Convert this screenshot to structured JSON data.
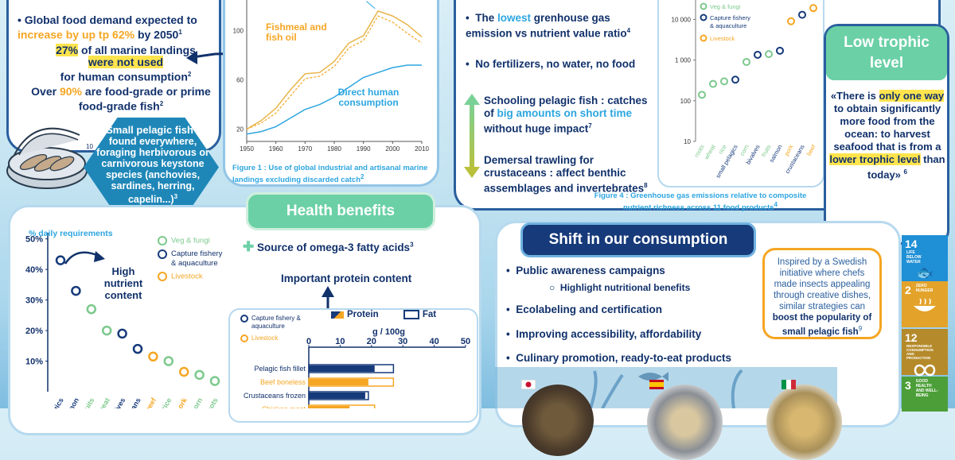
{
  "intro": {
    "b1_pre": "Global food demand expected to",
    "b1_hl": "increase by up tp 62%",
    "b1_post": "by 2050",
    "b1_sup": "1",
    "b2_hl": "27%",
    "b2_mid": "of all marine landings",
    "b2_yel": "were not used",
    "b2_post": "for human consumption",
    "b2_sup": "2",
    "b3_pre": "Over",
    "b3_hl": "90%",
    "b3_post": "are food-grade or prime food-grade fish",
    "b3_sup": "2",
    "ten_marker": "10",
    "hex_title": "Small pelagic fish :",
    "hex_body": "found everywhere, foraging herbivorous or carnivorous keystone species (anchovies, sardines, herring, capelin...)",
    "hex_sup": "3"
  },
  "fig1": {
    "series_a_label": "Fishmeal and fish oil",
    "series_b_label": "Direct human consumption",
    "caption": "Figure 1 : Use of global industrial and artisanal marine landings excluding discarded catch",
    "caption_sup": "2"
  },
  "env": {
    "b1_pre": "The",
    "b1_hl": "lowest",
    "b1_post": "grenhouse gas emission vs nutrient value ratio",
    "b1_sup": "4",
    "b2": "No fertilizers, no water, no food",
    "b3_pre": "Schooling pelagic fish : catches of",
    "b3_hl": "big amounts on short time",
    "b3_post": "without huge impact",
    "b3_sup": "7",
    "b4": "Demersal trawling for crustaceans : affect benthic assemblages and invertebrates",
    "b4_sup": "8"
  },
  "fig4": {
    "legend": [
      "Veg & fungi",
      "Capture fishery & aquaculture",
      "Livestock"
    ],
    "caption": "Figure 4 : Greenhouse gas emissions relative to composite nutrient richness across 11 food products",
    "caption_sup": "4"
  },
  "trophic": {
    "title": "Low trophic level",
    "q1": "«There is",
    "q_hl": "only one way",
    "q2": "to obtain significantly more food from the ocean: to harvest seafood that is from a",
    "q_hl2": "lower trophic level",
    "q3": "than today»",
    "sup": "6"
  },
  "health": {
    "title": "Health benefits",
    "omega": "Source of omega-3 fatty acids",
    "omega_sup": "3",
    "protein_title": "Important protein content",
    "daily_label": "% daily requirements",
    "legend": [
      "Veg & fungi",
      "Capture fishery & aquaculture",
      "Livestock"
    ],
    "high_nutrient": "High nutrient content",
    "bar_legend": [
      "Capture fishery & aquaculture",
      "Livestock"
    ],
    "protein_label": "Protein",
    "fat_label": "Fat",
    "unit": "g / 100g"
  },
  "shift": {
    "title": "Shift in our consumption",
    "b1": "Public awareness campaigns",
    "b1_sub": "Highlight nutritional benefits",
    "b2": "Ecolabeling and certification",
    "b3": "Improving accessibility, affordability",
    "b4": "Culinary promotion, ready-to-eat products",
    "box_pre": "Inspired by a Swedish initiative where chefs made insects appealing through creative dishes, similar strategies can",
    "box_bold": "boost the popularity of small pelagic fish",
    "box_sup": "9"
  },
  "sdgs": [
    {
      "num": "14",
      "text": "LIFE BELOW WATER",
      "color": "#1f8fd6"
    },
    {
      "num": "2",
      "text": "ZERO HUNGER",
      "color": "#e3a32b"
    },
    {
      "num": "12",
      "text": "RESPONSIBLE CONSUMPTION AND PRODUCTION",
      "color": "#b58a2a"
    },
    {
      "num": "3",
      "text": "GOOD HEALTH AND WELL-BEING",
      "color": "#4c9f38"
    }
  ],
  "colors": {
    "navy": "#11316b",
    "orange": "#f5a623",
    "blue": "#2da6e0",
    "green": "#6bd0a6",
    "teal": "#1f87b8"
  },
  "chart_data": [
    {
      "type": "line",
      "title": "",
      "x": [
        1950,
        1955,
        1960,
        1965,
        1970,
        1975,
        1980,
        1985,
        1990,
        1995,
        2000,
        2005,
        2010
      ],
      "xlim": [
        1950,
        2010
      ],
      "ylim": [
        10,
        125
      ],
      "yticks": [
        20,
        60,
        100
      ],
      "xticks": [
        1950,
        1960,
        1970,
        1980,
        1990,
        2000,
        2010
      ],
      "series": [
        {
          "name": "total",
          "values": [
            20,
            27,
            37,
            52,
            65,
            66,
            75,
            90,
            96,
            116,
            112,
            105,
            95
          ]
        },
        {
          "name": "Fishmeal and fish oil",
          "values": [
            20,
            25,
            33,
            47,
            61,
            63,
            71,
            86,
            92,
            112,
            107,
            98,
            90
          ]
        },
        {
          "name": "Direct human consumption",
          "values": [
            16,
            18,
            22,
            29,
            36,
            40,
            46,
            54,
            62,
            66,
            70,
            72,
            72
          ]
        }
      ]
    },
    {
      "type": "scatter",
      "log_y": true,
      "ylim": [
        10,
        30000
      ],
      "yticks": [
        10,
        100,
        1000,
        10000
      ],
      "ytick_labels": [
        "10",
        "100",
        "1 000",
        "10 000"
      ],
      "categories": [
        "roots",
        "wheat",
        "rice",
        "small pelagics",
        "corn",
        "bivalves",
        "fruits",
        "salmon",
        "pork",
        "crustaceans",
        "beef"
      ],
      "values": [
        140,
        260,
        300,
        330,
        900,
        1350,
        1400,
        1700,
        9000,
        13000,
        19000
      ],
      "groups": [
        "veg",
        "veg",
        "veg",
        "fish",
        "veg",
        "fish",
        "veg",
        "fish",
        "live",
        "fish",
        "live"
      ]
    },
    {
      "type": "scatter",
      "ylabel": "% daily requirements",
      "ylim": [
        0,
        52
      ],
      "yticks": [
        10,
        20,
        30,
        40,
        50
      ],
      "ytick_labels": [
        "10%",
        "20%",
        "30%",
        "40%",
        "50%"
      ],
      "categories": [
        "small pelagics",
        "salmon",
        "fruits",
        "wheat",
        "bivalves",
        "crustaceans",
        "beef",
        "rice",
        "pork",
        "corn",
        "roots"
      ],
      "values": [
        43,
        33,
        27,
        20,
        19,
        14,
        11.5,
        10,
        6.5,
        5.5,
        3.5
      ],
      "groups": [
        "fish",
        "fish",
        "veg",
        "veg",
        "fish",
        "fish",
        "live",
        "veg",
        "live",
        "veg",
        "veg"
      ]
    },
    {
      "type": "bar",
      "xlim": [
        0,
        50
      ],
      "xticks": [
        0,
        10,
        20,
        30,
        40,
        50
      ],
      "categories": [
        "Pelagic fish fillet",
        "Beef boneless",
        "Crustaceans frozen",
        "Chicken meat"
      ],
      "series": [
        {
          "name": "Protein",
          "values": [
            21,
            19,
            18,
            13
          ]
        },
        {
          "name": "Fat",
          "values": [
            27,
            27,
            19,
            21
          ]
        }
      ],
      "groups": [
        "fish",
        "live",
        "fish",
        "live"
      ]
    }
  ]
}
